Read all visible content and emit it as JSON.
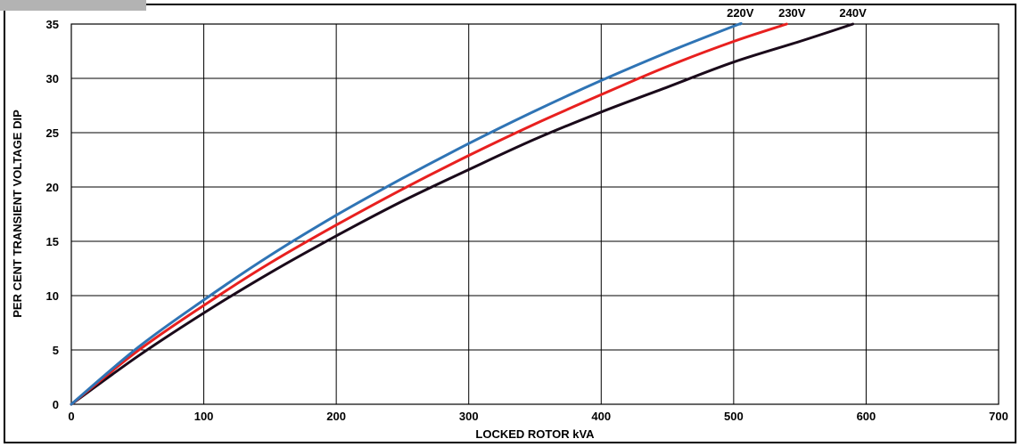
{
  "chart_data": {
    "type": "line",
    "title": "",
    "xlabel": "LOCKED ROTOR kVA",
    "ylabel": "PER CENT TRANSIENT VOLTAGE DIP",
    "xlim": [
      0,
      700
    ],
    "ylim": [
      0,
      35
    ],
    "xticks": [
      0,
      100,
      200,
      300,
      400,
      500,
      600,
      700
    ],
    "yticks": [
      0,
      5,
      10,
      15,
      20,
      25,
      30,
      35
    ],
    "grid": true,
    "legend": "series names at top of curves",
    "series": [
      {
        "name": "220V",
        "color": "#2f74b5",
        "x": [
          0,
          50,
          100,
          150,
          200,
          250,
          300,
          350,
          400,
          450,
          500,
          505
        ],
        "y": [
          0,
          5.2,
          9.6,
          13.7,
          17.4,
          20.8,
          24.0,
          27.0,
          29.8,
          32.4,
          34.8,
          35.0
        ]
      },
      {
        "name": "230V",
        "color": "#e8201f",
        "x": [
          0,
          50,
          100,
          150,
          200,
          250,
          300,
          350,
          400,
          450,
          500,
          540
        ],
        "y": [
          0,
          4.9,
          9.1,
          13.0,
          16.5,
          19.8,
          22.9,
          25.8,
          28.5,
          31.1,
          33.4,
          35.0
        ]
      },
      {
        "name": "240V",
        "color": "#1a0a1a",
        "x": [
          0,
          50,
          100,
          150,
          200,
          250,
          300,
          350,
          400,
          450,
          500,
          550,
          590
        ],
        "y": [
          0,
          4.4,
          8.4,
          12.1,
          15.5,
          18.7,
          21.6,
          24.4,
          26.9,
          29.2,
          31.5,
          33.4,
          35.0
        ]
      }
    ]
  }
}
